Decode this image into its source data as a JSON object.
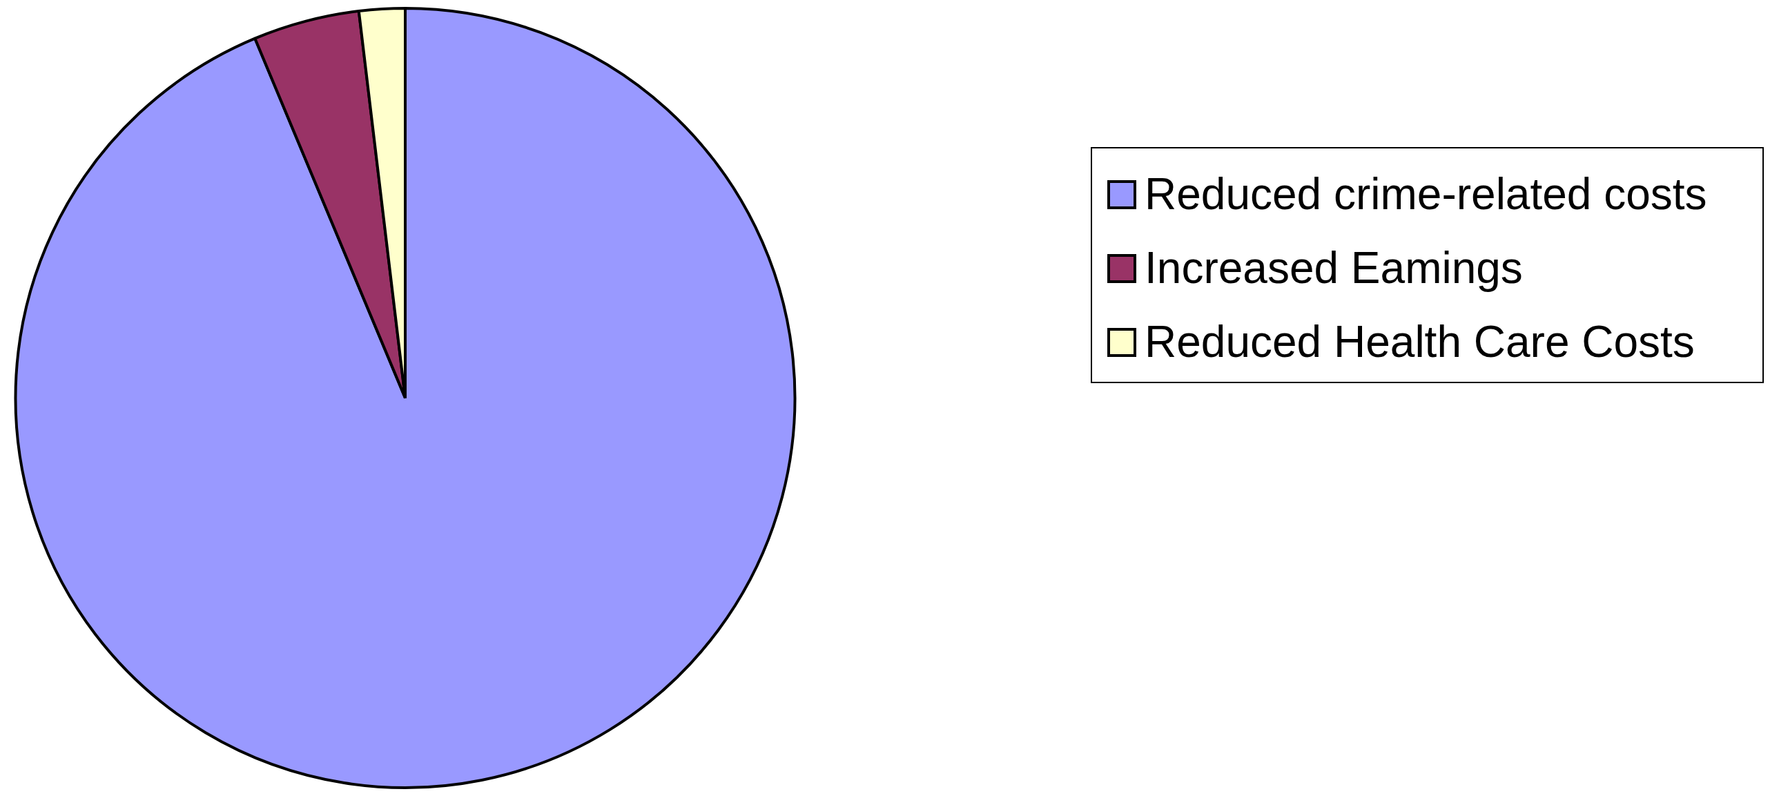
{
  "chart_data": {
    "type": "pie",
    "categories": [
      "Reduced crime-related costs",
      "Increased Eamings",
      "Reduced Health Care Costs"
    ],
    "values": [
      93.7,
      4.4,
      1.9
    ],
    "colors": [
      "#9999ff",
      "#993366",
      "#ffffcc"
    ],
    "legend": "right"
  }
}
